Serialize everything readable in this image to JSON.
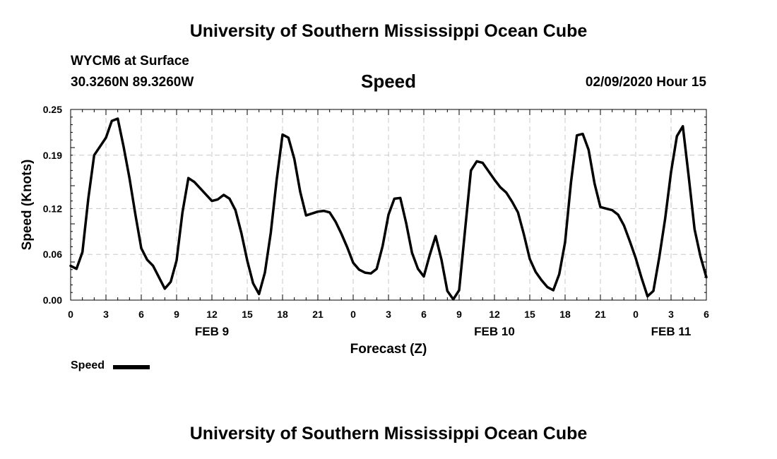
{
  "header": {
    "title_top": "University of Southern Mississippi Ocean Cube",
    "station": "WYCM6 at Surface",
    "coords": "30.3260N 89.3260W",
    "variable": "Speed",
    "timestamp": "02/09/2020 Hour 15"
  },
  "footer": {
    "title_bottom": "University of Southern Mississippi Ocean Cube"
  },
  "legend": {
    "label": "Speed",
    "color": "#000000"
  },
  "chart_data": {
    "type": "line",
    "xlabel": "Forecast (Z)",
    "ylabel": "Speed (Knots)",
    "x_unit": "hours from 00Z FEB 9",
    "xlim": [
      0,
      54
    ],
    "ylim": [
      0,
      0.25
    ],
    "y_ticks": [
      "0.25",
      "0.19",
      "0.12",
      "0.06",
      "0.00"
    ],
    "y_tick_values": [
      0.25,
      0.19,
      0.12,
      0.06,
      0.0
    ],
    "x_ticks": [
      0,
      3,
      6,
      9,
      12,
      15,
      18,
      21,
      24,
      27,
      30,
      33,
      36,
      39,
      42,
      45,
      48,
      51,
      54
    ],
    "x_tick_labels": [
      "0",
      "3",
      "6",
      "9",
      "12",
      "15",
      "18",
      "21",
      "0",
      "3",
      "6",
      "9",
      "12",
      "15",
      "18",
      "21",
      "0",
      "3",
      "6"
    ],
    "date_labels": [
      {
        "text": "FEB 9",
        "x": 12
      },
      {
        "text": "FEB 10",
        "x": 36
      },
      {
        "text": "FEB 11",
        "x": 51
      }
    ],
    "grid": true,
    "series": [
      {
        "name": "Speed",
        "color": "#000000",
        "points": [
          [
            0.0,
            0.045
          ],
          [
            0.5,
            0.041
          ],
          [
            1.0,
            0.063
          ],
          [
            1.5,
            0.133
          ],
          [
            2.0,
            0.19
          ],
          [
            3.0,
            0.213
          ],
          [
            3.5,
            0.235
          ],
          [
            4.0,
            0.238
          ],
          [
            4.5,
            0.201
          ],
          [
            5.0,
            0.16
          ],
          [
            5.5,
            0.112
          ],
          [
            6.0,
            0.068
          ],
          [
            6.5,
            0.053
          ],
          [
            7.0,
            0.045
          ],
          [
            8.0,
            0.015
          ],
          [
            8.5,
            0.024
          ],
          [
            9.0,
            0.052
          ],
          [
            9.5,
            0.115
          ],
          [
            10.0,
            0.16
          ],
          [
            10.5,
            0.155
          ],
          [
            12.0,
            0.13
          ],
          [
            12.5,
            0.132
          ],
          [
            13.0,
            0.138
          ],
          [
            13.5,
            0.133
          ],
          [
            14.0,
            0.118
          ],
          [
            14.5,
            0.088
          ],
          [
            15.0,
            0.052
          ],
          [
            15.5,
            0.022
          ],
          [
            16.0,
            0.008
          ],
          [
            16.5,
            0.036
          ],
          [
            17.0,
            0.088
          ],
          [
            17.5,
            0.158
          ],
          [
            18.0,
            0.217
          ],
          [
            18.5,
            0.213
          ],
          [
            19.0,
            0.185
          ],
          [
            19.5,
            0.142
          ],
          [
            20.0,
            0.111
          ],
          [
            21.0,
            0.116
          ],
          [
            21.5,
            0.117
          ],
          [
            22.0,
            0.115
          ],
          [
            22.5,
            0.103
          ],
          [
            23.0,
            0.087
          ],
          [
            23.5,
            0.069
          ],
          [
            24.0,
            0.049
          ],
          [
            24.5,
            0.04
          ],
          [
            25.0,
            0.036
          ],
          [
            25.5,
            0.035
          ],
          [
            26.0,
            0.041
          ],
          [
            26.5,
            0.071
          ],
          [
            27.0,
            0.112
          ],
          [
            27.5,
            0.133
          ],
          [
            28.0,
            0.134
          ],
          [
            28.5,
            0.101
          ],
          [
            29.0,
            0.062
          ],
          [
            29.5,
            0.041
          ],
          [
            30.0,
            0.031
          ],
          [
            30.5,
            0.059
          ],
          [
            31.0,
            0.084
          ],
          [
            31.5,
            0.053
          ],
          [
            32.0,
            0.012
          ],
          [
            32.5,
            0.001
          ],
          [
            33.0,
            0.013
          ],
          [
            33.5,
            0.091
          ],
          [
            34.0,
            0.17
          ],
          [
            34.5,
            0.182
          ],
          [
            35.0,
            0.18
          ],
          [
            36.0,
            0.158
          ],
          [
            36.5,
            0.148
          ],
          [
            37.0,
            0.141
          ],
          [
            37.5,
            0.129
          ],
          [
            38.0,
            0.115
          ],
          [
            38.5,
            0.086
          ],
          [
            39.0,
            0.054
          ],
          [
            39.5,
            0.037
          ],
          [
            40.0,
            0.026
          ],
          [
            40.5,
            0.017
          ],
          [
            41.0,
            0.013
          ],
          [
            41.5,
            0.034
          ],
          [
            42.0,
            0.076
          ],
          [
            42.5,
            0.154
          ],
          [
            43.0,
            0.216
          ],
          [
            43.5,
            0.218
          ],
          [
            44.0,
            0.197
          ],
          [
            44.5,
            0.153
          ],
          [
            45.0,
            0.122
          ],
          [
            45.5,
            0.12
          ],
          [
            46.0,
            0.118
          ],
          [
            46.5,
            0.112
          ],
          [
            47.0,
            0.098
          ],
          [
            47.5,
            0.077
          ],
          [
            48.0,
            0.055
          ],
          [
            48.5,
            0.029
          ],
          [
            49.0,
            0.005
          ],
          [
            49.5,
            0.012
          ],
          [
            50.0,
            0.056
          ],
          [
            50.5,
            0.107
          ],
          [
            51.0,
            0.168
          ],
          [
            51.5,
            0.215
          ],
          [
            52.0,
            0.228
          ],
          [
            52.5,
            0.162
          ],
          [
            53.0,
            0.093
          ],
          [
            53.5,
            0.057
          ],
          [
            54.0,
            0.03
          ]
        ]
      }
    ]
  }
}
